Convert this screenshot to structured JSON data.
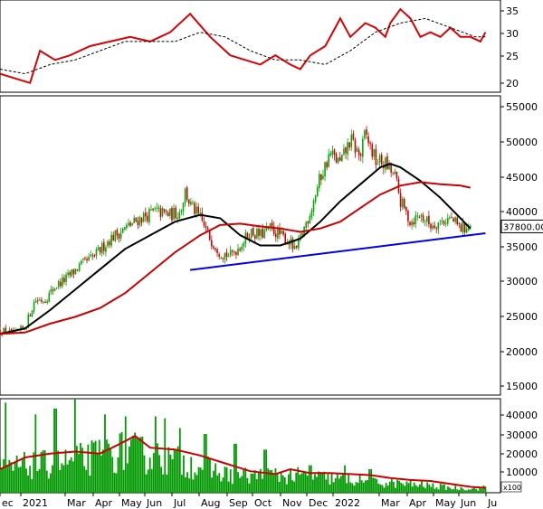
{
  "chart_data": [
    {
      "type": "line",
      "panel": "indicator",
      "ylim": [
        18,
        38
      ],
      "yticks": [
        "35",
        "30",
        "25",
        "20"
      ],
      "series": [
        {
          "role": "indicator",
          "color": "#dd0000",
          "x": [
            0,
            0.03,
            0.06,
            0.08,
            0.11,
            0.14,
            0.18,
            0.22,
            0.26,
            0.3,
            0.34,
            0.38,
            0.42,
            0.46,
            0.49,
            0.52,
            0.55,
            0.58,
            0.6,
            0.62,
            0.65,
            0.68,
            0.7,
            0.73,
            0.75,
            0.77,
            0.78,
            0.8,
            0.82,
            0.84,
            0.86,
            0.88,
            0.9,
            0.92,
            0.94,
            0.96,
            0.97
          ],
          "values": [
            22,
            21,
            20,
            27,
            25,
            26,
            28,
            29,
            30,
            29,
            31,
            35,
            30,
            26,
            25,
            24,
            26,
            24,
            23,
            26,
            28,
            34,
            30,
            33,
            32,
            30,
            33,
            36,
            34,
            30,
            31,
            30,
            32,
            30,
            30,
            29,
            31
          ]
        },
        {
          "role": "signal",
          "color": "#000000",
          "x": [
            0,
            0.05,
            0.1,
            0.15,
            0.2,
            0.25,
            0.3,
            0.35,
            0.4,
            0.45,
            0.5,
            0.55,
            0.6,
            0.65,
            0.7,
            0.75,
            0.8,
            0.85,
            0.9,
            0.95,
            0.97
          ],
          "values": [
            23,
            22,
            24,
            25,
            27,
            29,
            29,
            29,
            31,
            30,
            27,
            25,
            25,
            24,
            27,
            31,
            33,
            34,
            32,
            30,
            30
          ]
        }
      ]
    },
    {
      "type": "candlestick",
      "panel": "price",
      "ylim": [
        13000,
        57000
      ],
      "yticks": [
        "55000",
        "50000",
        "45000",
        "40000",
        "35000",
        "30000",
        "25000",
        "20000",
        "15000"
      ],
      "last_value_label": "37800.00",
      "candle_path": [
        [
          0.0,
          22500
        ],
        [
          0.03,
          22000
        ],
        [
          0.05,
          23000
        ],
        [
          0.07,
          27000
        ],
        [
          0.09,
          27000
        ],
        [
          0.11,
          29000
        ],
        [
          0.13,
          30000
        ],
        [
          0.16,
          32000
        ],
        [
          0.19,
          33500
        ],
        [
          0.22,
          36000
        ],
        [
          0.25,
          37500
        ],
        [
          0.28,
          39000
        ],
        [
          0.31,
          40000
        ],
        [
          0.34,
          39500
        ],
        [
          0.36,
          40000
        ],
        [
          0.37,
          43000
        ],
        [
          0.38,
          41000
        ],
        [
          0.4,
          39000
        ],
        [
          0.42,
          36000
        ],
        [
          0.44,
          34000
        ],
        [
          0.46,
          33500
        ],
        [
          0.48,
          35000
        ],
        [
          0.5,
          37000
        ],
        [
          0.52,
          36500
        ],
        [
          0.54,
          37500
        ],
        [
          0.56,
          36500
        ],
        [
          0.58,
          35500
        ],
        [
          0.59,
          34000
        ],
        [
          0.6,
          36000
        ],
        [
          0.62,
          40000
        ],
        [
          0.64,
          45000
        ],
        [
          0.66,
          48500
        ],
        [
          0.68,
          47000
        ],
        [
          0.7,
          50500
        ],
        [
          0.72,
          48000
        ],
        [
          0.73,
          51500
        ],
        [
          0.75,
          47500
        ],
        [
          0.77,
          47000
        ],
        [
          0.79,
          45000
        ],
        [
          0.8,
          41500
        ],
        [
          0.82,
          38500
        ],
        [
          0.84,
          39500
        ],
        [
          0.86,
          38000
        ],
        [
          0.88,
          38500
        ],
        [
          0.9,
          39000
        ],
        [
          0.92,
          37500
        ],
        [
          0.94,
          37800
        ]
      ],
      "series": [
        {
          "role": "moving-average-fast",
          "color": "#000000",
          "x": [
            0,
            0.05,
            0.1,
            0.15,
            0.2,
            0.25,
            0.3,
            0.35,
            0.4,
            0.44,
            0.48,
            0.52,
            0.56,
            0.6,
            0.64,
            0.68,
            0.72,
            0.76,
            0.78,
            0.8,
            0.84,
            0.88,
            0.92,
            0.94
          ],
          "values": [
            22000,
            22800,
            25500,
            28500,
            31500,
            34500,
            36500,
            38500,
            39500,
            39000,
            36500,
            35000,
            35000,
            36000,
            38500,
            41500,
            44000,
            46500,
            47000,
            46500,
            44500,
            42000,
            39000,
            37500
          ]
        },
        {
          "role": "moving-average-slow",
          "color": "#cc0000",
          "x": [
            0,
            0.05,
            0.1,
            0.15,
            0.2,
            0.25,
            0.3,
            0.35,
            0.4,
            0.44,
            0.48,
            0.52,
            0.56,
            0.6,
            0.64,
            0.68,
            0.72,
            0.76,
            0.8,
            0.84,
            0.88,
            0.92,
            0.94
          ],
          "values": [
            22000,
            22200,
            23500,
            24500,
            25800,
            28000,
            31000,
            34000,
            36500,
            38000,
            38200,
            37800,
            37500,
            37000,
            37500,
            38500,
            40500,
            42500,
            43800,
            44300,
            44000,
            43800,
            43500
          ]
        },
        {
          "role": "trendline",
          "color": "#0000ee",
          "x": [
            0.38,
            0.97
          ],
          "values": [
            31400,
            36800
          ]
        }
      ]
    },
    {
      "type": "bar",
      "panel": "volume",
      "ylim": [
        0,
        48000
      ],
      "yticks": [
        "40000",
        "30000",
        "20000",
        "10000"
      ],
      "unit_label": "x100",
      "bar_level_profile": [
        [
          0.0,
          14000
        ],
        [
          0.05,
          16000
        ],
        [
          0.1,
          17000
        ],
        [
          0.15,
          19000
        ],
        [
          0.2,
          22000
        ],
        [
          0.25,
          25000
        ],
        [
          0.3,
          22000
        ],
        [
          0.35,
          19000
        ],
        [
          0.4,
          16000
        ],
        [
          0.45,
          11000
        ],
        [
          0.5,
          10000
        ],
        [
          0.55,
          10500
        ],
        [
          0.6,
          10000
        ],
        [
          0.65,
          9000
        ],
        [
          0.7,
          8000
        ],
        [
          0.75,
          6000
        ],
        [
          0.8,
          5500
        ],
        [
          0.85,
          4500
        ],
        [
          0.9,
          3000
        ],
        [
          0.95,
          2500
        ],
        [
          0.97,
          3000
        ]
      ],
      "bar_spikes": [
        [
          0.01,
          46000
        ],
        [
          0.07,
          40000
        ],
        [
          0.11,
          43000
        ],
        [
          0.15,
          48000
        ],
        [
          0.21,
          40000
        ],
        [
          0.25,
          39000
        ],
        [
          0.31,
          39000
        ],
        [
          0.33,
          38000
        ],
        [
          0.36,
          33000
        ],
        [
          0.41,
          30000
        ],
        [
          0.47,
          25000
        ],
        [
          0.53,
          22000
        ],
        [
          0.62,
          14000
        ],
        [
          0.69,
          14000
        ],
        [
          0.74,
          12000
        ]
      ],
      "series": [
        {
          "role": "volume-average",
          "color": "#cc0000",
          "x": [
            0,
            0.05,
            0.1,
            0.15,
            0.2,
            0.24,
            0.27,
            0.3,
            0.35,
            0.4,
            0.45,
            0.5,
            0.55,
            0.58,
            0.62,
            0.66,
            0.7,
            0.74,
            0.78,
            0.82,
            0.86,
            0.9,
            0.94,
            0.97
          ],
          "values": [
            12000,
            18000,
            20000,
            21000,
            20000,
            25000,
            29000,
            23000,
            22000,
            19000,
            15000,
            11000,
            9500,
            12000,
            10000,
            10000,
            9500,
            9000,
            7500,
            6500,
            6000,
            4500,
            3000,
            2500
          ]
        }
      ]
    }
  ],
  "x_axis": {
    "labels": [
      "ec",
      "2021",
      "Mar",
      "Apr",
      "May",
      "Jun",
      "Jul",
      "Aug",
      "Sep",
      "Oct",
      "Nov",
      "Dec",
      "2022",
      "Mar",
      "Apr",
      "May",
      "Jun",
      "Ju"
    ]
  },
  "colors": {
    "up": "#00aa00",
    "down": "#cc0000",
    "volume": "#009900",
    "frame": "#000000"
  }
}
